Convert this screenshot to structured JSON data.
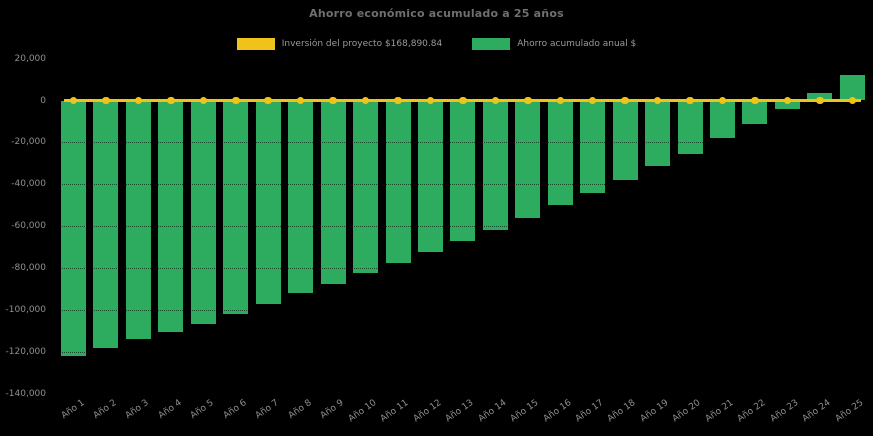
{
  "chart": {
    "background": "#000000",
    "title_color": "#6f6f6f",
    "label_color": "#8f8f8f"
  },
  "chart_data": {
    "type": "bar",
    "title": "Ahorro económico acumulado a 25 años",
    "categories": [
      "Año 1",
      "Año 2",
      "Año 3",
      "Año 4",
      "Año 5",
      "Año 6",
      "Año 7",
      "Año 8",
      "Año 9",
      "Año 10",
      "Año 11",
      "Año 12",
      "Año 13",
      "Año 14",
      "Año 15",
      "Año 16",
      "Año 17",
      "Año 18",
      "Año 19",
      "Año 20",
      "Año 21",
      "Año 22",
      "Año 23",
      "Año 24",
      "Año 25"
    ],
    "series": [
      {
        "name": "Inversión del proyecto $168,890.84",
        "kind": "line",
        "color": "#efc319",
        "y": 0
      },
      {
        "name": "Ahorro acumulado anual $",
        "kind": "bar",
        "color": "#2dac60",
        "values": [
          -122000,
          -118000,
          -114000,
          -110500,
          -106500,
          -102000,
          -97000,
          -92000,
          -87500,
          -82500,
          -77500,
          -72500,
          -67000,
          -62000,
          -56000,
          -50000,
          -44000,
          -38000,
          -31500,
          -25500,
          -18000,
          -11000,
          -4000,
          3500,
          12000
        ]
      }
    ],
    "ylim": [
      -140000,
      20000
    ],
    "yticks": [
      20000,
      0,
      -20000,
      -40000,
      -60000,
      -80000,
      -100000,
      -120000,
      -140000
    ],
    "ytick_labels": [
      "20,000",
      "0",
      "-20,000",
      "-40,000",
      "-60,000",
      "-80,000",
      "-100,000",
      "-120,000",
      "-140,000"
    ],
    "legend_position": "top",
    "grid": "horizontal-faint",
    "xlabel": "",
    "ylabel": ""
  }
}
